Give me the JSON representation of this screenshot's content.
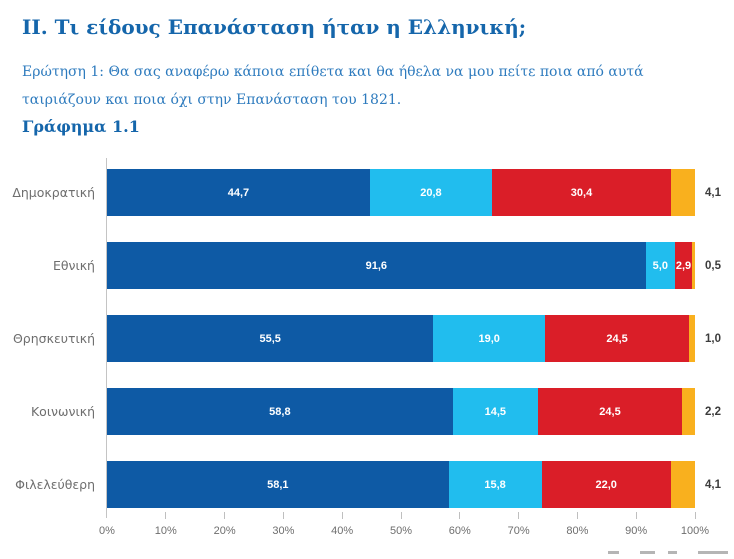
{
  "page": {
    "section_title": "ΙΙ. Τι είδους Επανάσταση ήταν η Ελληνική;",
    "question_text": "Ερώτηση 1: Θα σας αναφέρω κάποια επίθετα και θα ήθελα να μου πείτε ποια από αυτά ταιριάζουν  και ποια όχι στην Επανάσταση του 1821.",
    "chart_title": "Γράφημα 1.1"
  },
  "colors": {
    "title_blue": "#1566AB",
    "subtitle_blue": "#2E7BBE",
    "category_gray": "#6E6E6E",
    "outside_value_gray": "#3C3C3C",
    "axis_gray": "#C4C4C4"
  },
  "chart_data": {
    "type": "bar",
    "orientation": "horizontal",
    "stacked": true,
    "title": "Γράφημα 1.1",
    "categories": [
      "Δημοκρατική",
      "Εθνική",
      "Θρησκευτική",
      "Κοινωνική",
      "Φιλελεύθερη"
    ],
    "series": [
      {
        "name": "dark-blue",
        "color": "#0E5AA5",
        "values": [
          44.7,
          91.6,
          55.5,
          58.8,
          58.1
        ]
      },
      {
        "name": "light-blue",
        "color": "#21BDEE",
        "values": [
          20.8,
          5.0,
          19.0,
          14.5,
          15.8
        ]
      },
      {
        "name": "red",
        "color": "#DA1E28",
        "values": [
          30.4,
          2.9,
          24.5,
          24.5,
          22.0
        ]
      },
      {
        "name": "orange",
        "color": "#F9B01E",
        "values": [
          4.1,
          0.5,
          1.0,
          2.2,
          4.1
        ]
      }
    ],
    "value_labels": [
      [
        "44,7",
        "20,8",
        "30,4",
        "4,1"
      ],
      [
        "91,6",
        "5,0",
        "2,9",
        "0,5"
      ],
      [
        "55,5",
        "19,0",
        "24,5",
        "1,0"
      ],
      [
        "58,8",
        "14,5",
        "24,5",
        "2,2"
      ],
      [
        "58,1",
        "15,8",
        "22,0",
        "4,1"
      ]
    ],
    "x_ticks": [
      "0%",
      "10%",
      "20%",
      "30%",
      "40%",
      "50%",
      "60%",
      "70%",
      "80%",
      "90%",
      "100%"
    ],
    "xlim": [
      0,
      100
    ],
    "grid": "off",
    "legend": "none",
    "last_series_labels_outside": true
  }
}
